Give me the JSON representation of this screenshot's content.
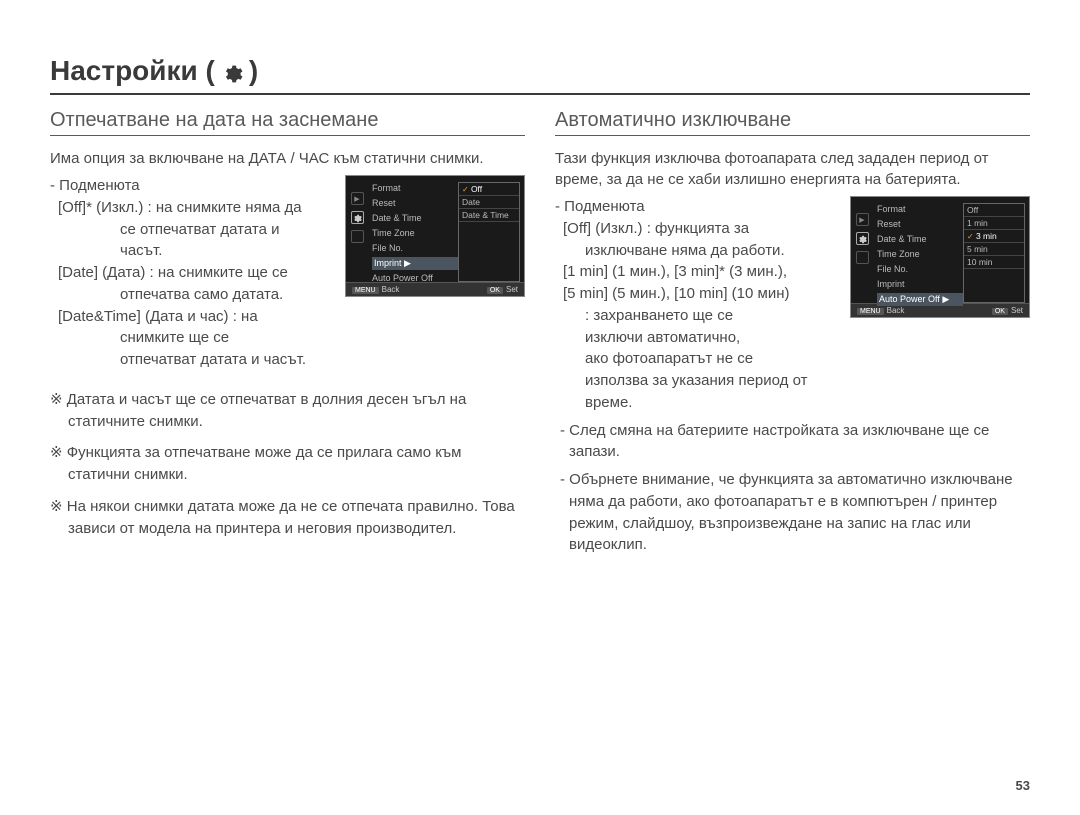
{
  "title_main": "Настройки (",
  "title_end": ")",
  "page_number": "53",
  "left": {
    "heading": "Отпечатване на дата на заснемане",
    "intro": "Има опция за включване на ДАТА / ЧАС към статични снимки.",
    "sub_label": "- Подменюта",
    "line_off": "[Off]* (Изкл.) : на снимките няма да",
    "line_off_2": "се отпечатват датата и",
    "line_off_3": "часът.",
    "line_date": "[Date] (Дата) : на снимките ще се",
    "line_date_2": "отпечатва само датата.",
    "line_dt": "[Date&Time] (Дата и час) : на",
    "line_dt_2": "снимките ще се",
    "line_dt_3": "отпечатват датата и часът.",
    "note1": "※ Датата и часът ще се отпечатват в долния десен ъгъл на статичните снимки.",
    "note2": "※ Функцията за отпечатване може да се прилага само към статични снимки.",
    "note3": "※ На някои снимки датата може да не се отпечата правилно. Това зависи от модела на принтера и неговия производител.",
    "lcd": {
      "menu": [
        "Format",
        "Reset",
        "Date & Time",
        "Time Zone",
        "File No.",
        "Imprint",
        "Auto Power Off"
      ],
      "hl_index": 5,
      "options": [
        "Off",
        "Date",
        "Date & Time"
      ],
      "sel_index": 0,
      "back": "Back",
      "set": "Set"
    }
  },
  "right": {
    "heading": "Автоматично изключване",
    "intro": "Тази функция изключва фотоапарата след зададен период от време, за да не се хаби излишно енергията на батерията.",
    "sub_label": "- Подменюта",
    "line_off": "[Off] (Изкл.) : функцията за",
    "line_off_2": "изключване няма да работи.",
    "line_mins": "[1 min] (1 мин.), [3 min]* (3 мин.),",
    "line_mins2": "[5 min] (5 мин.), [10 min] (10 мин)",
    "line_mins3": ": захранването ще се",
    "line_mins4": "изключи автоматично,",
    "line_mins5": "ако фотоапаратът не се",
    "line_mins6": "използва за указания период от време.",
    "dash1": "- След смяна на батериите настройката за изключване ще се запази.",
    "dash2": "- Обърнете внимание, че функцията за автоматично изключване няма да работи, ако фотоапаратът е в компютърен / принтер режим, слайдшоу, възпроизвеждане на запис на глас или видеоклип.",
    "lcd": {
      "menu": [
        "Format",
        "Reset",
        "Date & Time",
        "Time Zone",
        "File No.",
        "Imprint",
        "Auto Power Off"
      ],
      "hl_index": 6,
      "options": [
        "Off",
        "1 min",
        "3 min",
        "5 min",
        "10 min"
      ],
      "sel_index": 2,
      "back": "Back",
      "set": "Set"
    }
  }
}
